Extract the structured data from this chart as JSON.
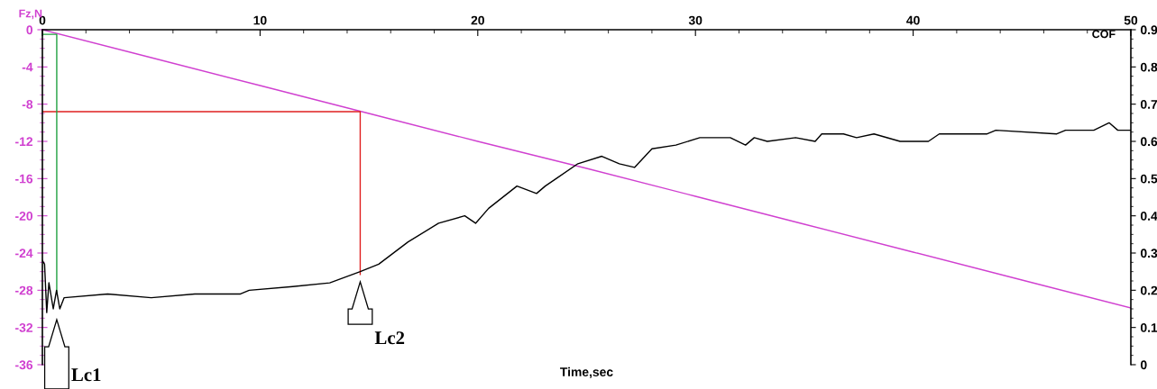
{
  "chart_data": {
    "type": "line",
    "xlabel": "Time,sec",
    "ylabel": "Fz,N",
    "y2label": "COF",
    "xlim": [
      0,
      50
    ],
    "xticks": [
      0,
      10,
      20,
      30,
      40,
      50
    ],
    "ylim": [
      -36,
      0
    ],
    "yticks": [
      0,
      -4,
      -8,
      -12,
      -16,
      -20,
      -24,
      -28,
      -32,
      -36
    ],
    "y2lim": [
      0,
      0.9
    ],
    "y2ticks": [
      0,
      0.1,
      0.2,
      0.3,
      0.4,
      0.5,
      0.6,
      0.7,
      0.8,
      0.9
    ],
    "series": [
      {
        "color": "#d040d0",
        "x": [
          0,
          5,
          10,
          15,
          20,
          25,
          30,
          35,
          40,
          45,
          50
        ],
        "values": [
          0,
          -3.0,
          -6.0,
          -9.0,
          -12.0,
          -14.9,
          -17.9,
          -20.9,
          -23.9,
          -26.9,
          -29.9
        ]
      },
      {
        "color": "#000000",
        "axis": "y2",
        "x": [
          0,
          0.1,
          0.2,
          0.3,
          0.5,
          0.65,
          0.8,
          1.0,
          3,
          5,
          7,
          9.1,
          9.5,
          11.5,
          13.2,
          14.6,
          15.45,
          15.9,
          16.8,
          18.2,
          19.4,
          19.9,
          20.5,
          21.8,
          22.7,
          23.1,
          23.6,
          24.6,
          25.7,
          26.5,
          27.2,
          28.0,
          29.1,
          30.2,
          31.6,
          32.3,
          32.7,
          33.3,
          34.6,
          35.5,
          35.8,
          36.8,
          37.4,
          38.2,
          39.4,
          40.7,
          41.2,
          43.4,
          43.8,
          46.6,
          47.0,
          48.3,
          49.0,
          49.4,
          50
        ],
        "values": [
          0.28,
          0.27,
          0.14,
          0.22,
          0.15,
          0.2,
          0.15,
          0.18,
          0.19,
          0.18,
          0.19,
          0.19,
          0.2,
          0.21,
          0.22,
          0.25,
          0.27,
          0.29,
          0.33,
          0.38,
          0.4,
          0.38,
          0.42,
          0.48,
          0.46,
          0.48,
          0.5,
          0.54,
          0.56,
          0.54,
          0.53,
          0.58,
          0.59,
          0.61,
          0.61,
          0.59,
          0.61,
          0.6,
          0.61,
          0.6,
          0.62,
          0.62,
          0.61,
          0.62,
          0.6,
          0.6,
          0.62,
          0.62,
          0.63,
          0.62,
          0.63,
          0.63,
          0.65,
          0.63,
          0.63
        ]
      },
      {
        "color": "#e02020",
        "x": [
          0,
          14.6,
          14.6
        ],
        "values": [
          -8.8,
          -8.8,
          -26.3
        ]
      },
      {
        "color": "#20a040",
        "x": [
          0,
          0.66,
          0.66
        ],
        "values": [
          -0.5,
          -0.5,
          -28.3
        ]
      }
    ],
    "annotations": [
      "Lc1",
      "Lc2"
    ]
  }
}
